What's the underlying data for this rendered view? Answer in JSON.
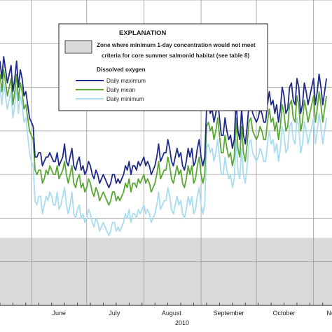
{
  "chart_data": {
    "type": "line",
    "year_label": "2010",
    "month_labels": [
      "June",
      "July",
      "August",
      "September",
      "October",
      "November"
    ],
    "month_start_days": [
      0,
      30,
      61,
      92,
      122,
      153
    ],
    "x_start_day": -17,
    "x_end_day": 163,
    "ylim": [
      0,
      7
    ],
    "grid": true,
    "shaded_zone": {
      "from": 0,
      "to": 1.55,
      "color": "#d9dadb"
    },
    "legend": {
      "title": "EXPLANATION",
      "zone_text_line1": "Zone where minimum 1-day concentration would not meet",
      "zone_text_line2": "criteria for core summer salmonid habitat (see table 8)",
      "subtitle": "Dissolved oxygen",
      "placement": "top-center"
    },
    "series": [
      {
        "name": "Daily maximum",
        "color": "#1f2a8a",
        "values": [
          5.6,
          5.2,
          5.7,
          5.4,
          5.1,
          5.3,
          5.5,
          4.9,
          5.2,
          5.6,
          5.0,
          5.4,
          5.2,
          4.8,
          4.9,
          4.6,
          4.3,
          4.2,
          4.1,
          3.4,
          3.4,
          3.5,
          3.5,
          3.2,
          3.3,
          3.4,
          3.4,
          3.5,
          3.4,
          3.3,
          3.3,
          3.5,
          3.2,
          3.3,
          3.4,
          3.7,
          3.3,
          3.2,
          3.4,
          3.6,
          3.2,
          3.1,
          3.3,
          3.4,
          3.1,
          3.2,
          3.0,
          3.1,
          3.3,
          3.2,
          3.0,
          2.9,
          3.1,
          3.0,
          2.8,
          2.9,
          3.0,
          2.9,
          2.8,
          2.7,
          2.8,
          3.0,
          3.0,
          2.8,
          2.9,
          2.8,
          2.9,
          3.0,
          3.2,
          3.1,
          3.3,
          3.0,
          3.2,
          3.2,
          3.1,
          3.3,
          3.2,
          3.3,
          3.4,
          3.2,
          3.3,
          3.2,
          3.0,
          3.1,
          3.2,
          3.4,
          3.7,
          3.3,
          3.4,
          3.5,
          3.5,
          3.8,
          3.6,
          3.3,
          3.2,
          3.4,
          3.6,
          3.4,
          3.5,
          3.2,
          3.1,
          3.3,
          3.6,
          3.4,
          3.6,
          3.2,
          3.3,
          3.6,
          3.8,
          3.4,
          3.2,
          3.4,
          4.5,
          4.6,
          4.4,
          4.5,
          4.2,
          4.4,
          4.7,
          4.3,
          3.9,
          3.9,
          4.3,
          4.0,
          3.8,
          3.9,
          3.6,
          3.8,
          4.7,
          4.0,
          3.8,
          4.5,
          3.9,
          3.7,
          4.1,
          4.6,
          4.7,
          4.4,
          4.3,
          4.2,
          4.3,
          4.5,
          4.4,
          4.2,
          4.2,
          4.6,
          4.9,
          4.6,
          4.7,
          4.4,
          4.6,
          4.2,
          4.5,
          5.0,
          4.8,
          4.4,
          4.5,
          5.0,
          5.1,
          4.7,
          4.6,
          5.2,
          5.0,
          4.4,
          4.6,
          5.1,
          4.9,
          4.6,
          4.8,
          5.0,
          5.2,
          4.6,
          4.9,
          5.3,
          5.0,
          4.6,
          4.9,
          5.2
        ]
      },
      {
        "name": "Daily mean",
        "color": "#5aa833",
        "values": [
          5.3,
          4.9,
          5.4,
          5.1,
          4.8,
          5.0,
          5.2,
          4.6,
          4.9,
          5.3,
          4.7,
          5.1,
          4.9,
          4.5,
          4.6,
          4.3,
          4.0,
          3.9,
          3.8,
          3.1,
          3.0,
          3.1,
          3.1,
          2.8,
          2.9,
          3.1,
          3.0,
          3.2,
          3.1,
          3.0,
          3.0,
          3.2,
          2.9,
          3.0,
          3.1,
          3.3,
          3.0,
          2.8,
          3.0,
          3.2,
          2.8,
          2.7,
          2.9,
          3.0,
          2.7,
          2.8,
          2.6,
          2.7,
          2.9,
          2.8,
          2.6,
          2.5,
          2.7,
          2.6,
          2.4,
          2.5,
          2.6,
          2.5,
          2.4,
          2.3,
          2.4,
          2.6,
          2.6,
          2.4,
          2.5,
          2.4,
          2.5,
          2.6,
          2.8,
          2.7,
          2.9,
          2.6,
          2.8,
          2.8,
          2.7,
          2.9,
          2.8,
          2.9,
          3.0,
          2.8,
          2.9,
          2.8,
          2.6,
          2.7,
          2.8,
          3.0,
          3.3,
          2.9,
          3.0,
          3.1,
          3.1,
          3.4,
          3.2,
          2.9,
          2.8,
          3.0,
          3.2,
          3.0,
          3.1,
          2.8,
          2.7,
          2.9,
          3.2,
          3.0,
          3.2,
          2.8,
          2.9,
          3.2,
          3.4,
          3.0,
          2.8,
          3.0,
          4.1,
          4.2,
          4.0,
          4.1,
          3.8,
          4.0,
          4.3,
          3.9,
          3.5,
          3.5,
          3.9,
          3.6,
          3.4,
          3.5,
          3.2,
          3.4,
          4.3,
          3.6,
          3.4,
          4.1,
          3.5,
          3.3,
          3.7,
          4.2,
          4.3,
          4.0,
          3.9,
          3.8,
          3.9,
          4.1,
          4.0,
          3.8,
          3.8,
          4.2,
          4.5,
          4.2,
          4.3,
          4.0,
          4.2,
          3.8,
          4.1,
          4.6,
          4.4,
          4.0,
          4.1,
          4.6,
          4.7,
          4.3,
          4.2,
          4.8,
          4.6,
          4.0,
          4.2,
          4.7,
          4.5,
          4.2,
          4.4,
          4.6,
          4.8,
          4.2,
          4.5,
          4.9,
          4.6,
          4.2,
          4.5,
          4.8
        ]
      },
      {
        "name": "Daily minimum",
        "color": "#a9dcef",
        "values": [
          5.0,
          4.6,
          5.1,
          4.8,
          4.5,
          4.7,
          4.9,
          4.3,
          4.6,
          5.0,
          4.4,
          4.8,
          4.6,
          4.2,
          4.3,
          3.9,
          3.5,
          3.3,
          3.2,
          2.4,
          2.3,
          2.5,
          2.5,
          2.1,
          2.3,
          2.5,
          2.4,
          2.6,
          2.5,
          2.3,
          2.3,
          2.6,
          2.2,
          2.3,
          2.5,
          2.7,
          2.3,
          2.1,
          2.3,
          2.6,
          2.1,
          2.0,
          2.2,
          2.3,
          2.0,
          2.1,
          1.9,
          2.0,
          2.2,
          2.1,
          1.9,
          1.8,
          2.0,
          1.9,
          1.7,
          1.8,
          1.9,
          1.8,
          1.7,
          1.6,
          1.7,
          1.9,
          1.9,
          1.7,
          1.8,
          1.7,
          1.8,
          1.9,
          2.1,
          2.0,
          2.2,
          1.9,
          2.1,
          2.1,
          2.0,
          2.2,
          2.1,
          2.2,
          2.3,
          2.1,
          2.2,
          2.1,
          1.9,
          2.0,
          2.1,
          2.3,
          2.6,
          2.2,
          2.3,
          2.4,
          2.4,
          2.7,
          2.5,
          2.2,
          2.1,
          2.3,
          2.5,
          2.3,
          2.4,
          2.1,
          2.0,
          2.2,
          2.5,
          2.3,
          2.5,
          2.1,
          2.2,
          2.5,
          2.7,
          2.3,
          2.1,
          2.3,
          3.6,
          3.7,
          3.5,
          3.6,
          3.3,
          3.5,
          3.8,
          3.4,
          3.0,
          3.0,
          3.4,
          3.1,
          2.9,
          3.0,
          2.7,
          2.9,
          3.8,
          3.1,
          2.9,
          3.6,
          3.0,
          2.8,
          3.2,
          3.7,
          3.8,
          3.5,
          3.4,
          3.3,
          3.4,
          3.6,
          3.5,
          3.3,
          3.3,
          3.7,
          4.0,
          3.7,
          3.8,
          3.5,
          3.7,
          3.3,
          3.6,
          4.1,
          3.9,
          3.5,
          3.6,
          4.1,
          4.2,
          3.8,
          3.7,
          4.3,
          4.1,
          3.5,
          3.7,
          4.2,
          4.0,
          3.7,
          3.9,
          4.1,
          4.3,
          3.7,
          4.0,
          4.4,
          4.1,
          3.7,
          4.0,
          4.3
        ]
      }
    ]
  }
}
